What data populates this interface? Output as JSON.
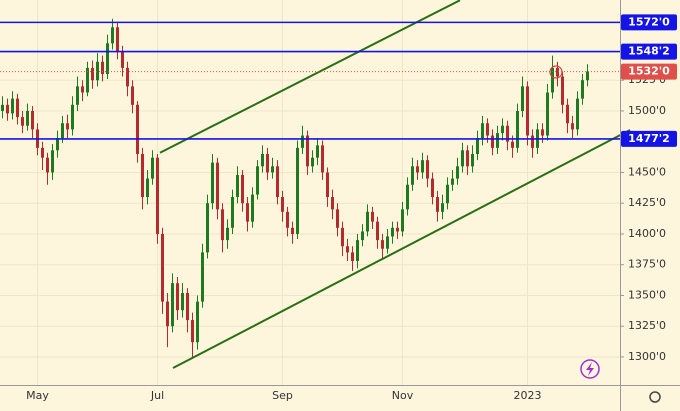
{
  "chart_data": {
    "type": "candlestick",
    "categories": [
      null,
      null,
      null,
      null,
      null,
      null,
      null,
      "May",
      null,
      null,
      null,
      null,
      null,
      null,
      null,
      null,
      null,
      null,
      null,
      null,
      null,
      null,
      null,
      null,
      null,
      null,
      null,
      null,
      null,
      null,
      null,
      "Jul",
      null,
      null,
      null,
      null,
      null,
      null,
      null,
      null,
      null,
      null,
      null,
      null,
      null,
      null,
      null,
      null,
      null,
      null,
      null,
      null,
      null,
      null,
      null,
      null,
      "Sep",
      null,
      null,
      null,
      null,
      null,
      null,
      null,
      null,
      null,
      null,
      null,
      null,
      null,
      null,
      null,
      null,
      null,
      null,
      null,
      null,
      null,
      null,
      null,
      "Nov",
      null,
      null,
      null,
      null,
      null,
      null,
      null,
      null,
      null,
      null,
      null,
      null,
      null,
      null,
      null,
      null,
      null,
      null,
      null,
      null,
      null,
      null,
      null,
      null,
      "2023",
      null,
      null,
      null,
      null,
      null,
      null,
      null,
      null,
      null,
      null,
      null,
      null
    ],
    "open": [
      1500,
      1505,
      1498,
      1510,
      1495,
      1488,
      1500,
      1485,
      1470,
      1462,
      1450,
      1468,
      1478,
      1490,
      1485,
      1505,
      1520,
      1515,
      1535,
      1525,
      1540,
      1530,
      1555,
      1568,
      1548,
      1535,
      1520,
      1505,
      1465,
      1430,
      1445,
      1462,
      1400,
      1345,
      1325,
      1360,
      1338,
      1352,
      1330,
      1312,
      1345,
      1385,
      1425,
      1458,
      1420,
      1395,
      1405,
      1430,
      1448,
      1425,
      1410,
      1432,
      1455,
      1465,
      1450,
      1455,
      1430,
      1418,
      1405,
      1400,
      1470,
      1480,
      1455,
      1462,
      1472,
      1450,
      1430,
      1420,
      1405,
      1390,
      1385,
      1378,
      1395,
      1402,
      1418,
      1410,
      1395,
      1388,
      1398,
      1405,
      1402,
      1420,
      1440,
      1455,
      1450,
      1460,
      1445,
      1430,
      1418,
      1425,
      1440,
      1445,
      1455,
      1468,
      1455,
      1465,
      1478,
      1490,
      1480,
      1470,
      1482,
      1488,
      1475,
      1470,
      1500,
      1520,
      1480,
      1470,
      1485,
      1480,
      1515,
      1535,
      1528,
      1505,
      1490,
      1485,
      1510,
      1525
    ],
    "high": [
      1512,
      1510,
      1516,
      1514,
      1500,
      1506,
      1504,
      1490,
      1475,
      1466,
      1473,
      1484,
      1496,
      1497,
      1512,
      1528,
      1525,
      1540,
      1541,
      1547,
      1545,
      1562,
      1575,
      1572,
      1553,
      1540,
      1525,
      1508,
      1470,
      1452,
      1468,
      1465,
      1405,
      1352,
      1368,
      1365,
      1360,
      1356,
      1336,
      1350,
      1392,
      1432,
      1465,
      1462,
      1425,
      1412,
      1436,
      1455,
      1452,
      1430,
      1438,
      1460,
      1472,
      1470,
      1462,
      1460,
      1435,
      1422,
      1410,
      1476,
      1488,
      1484,
      1468,
      1478,
      1476,
      1454,
      1436,
      1425,
      1410,
      1396,
      1390,
      1400,
      1408,
      1424,
      1422,
      1414,
      1400,
      1404,
      1410,
      1410,
      1426,
      1446,
      1462,
      1460,
      1466,
      1464,
      1450,
      1435,
      1432,
      1446,
      1452,
      1462,
      1474,
      1472,
      1472,
      1484,
      1496,
      1494,
      1485,
      1488,
      1494,
      1492,
      1480,
      1506,
      1528,
      1524,
      1485,
      1490,
      1490,
      1522,
      1545,
      1540,
      1532,
      1510,
      1496,
      1516,
      1530,
      1538
    ],
    "low": [
      1494,
      1492,
      1493,
      1489,
      1482,
      1484,
      1478,
      1464,
      1452,
      1440,
      1444,
      1462,
      1474,
      1478,
      1480,
      1500,
      1508,
      1512,
      1518,
      1520,
      1524,
      1526,
      1550,
      1542,
      1528,
      1512,
      1498,
      1458,
      1420,
      1424,
      1440,
      1392,
      1335,
      1308,
      1320,
      1330,
      1332,
      1320,
      1300,
      1306,
      1340,
      1380,
      1420,
      1412,
      1385,
      1388,
      1400,
      1425,
      1418,
      1402,
      1405,
      1428,
      1450,
      1444,
      1445,
      1424,
      1410,
      1398,
      1392,
      1396,
      1465,
      1448,
      1450,
      1456,
      1444,
      1422,
      1412,
      1398,
      1382,
      1378,
      1370,
      1372,
      1390,
      1398,
      1404,
      1388,
      1380,
      1384,
      1392,
      1396,
      1398,
      1415,
      1435,
      1444,
      1445,
      1438,
      1424,
      1410,
      1412,
      1420,
      1435,
      1440,
      1450,
      1448,
      1450,
      1460,
      1472,
      1474,
      1464,
      1465,
      1476,
      1468,
      1462,
      1466,
      1495,
      1472,
      1462,
      1465,
      1474,
      1476,
      1510,
      1520,
      1498,
      1482,
      1478,
      1480,
      1505,
      1520
    ],
    "close": [
      1505,
      1498,
      1510,
      1495,
      1488,
      1500,
      1485,
      1470,
      1462,
      1450,
      1468,
      1478,
      1490,
      1485,
      1505,
      1520,
      1515,
      1535,
      1525,
      1540,
      1530,
      1555,
      1568,
      1548,
      1535,
      1520,
      1505,
      1465,
      1430,
      1445,
      1462,
      1400,
      1345,
      1325,
      1360,
      1338,
      1352,
      1330,
      1312,
      1345,
      1385,
      1425,
      1458,
      1420,
      1395,
      1405,
      1430,
      1448,
      1425,
      1410,
      1432,
      1455,
      1465,
      1450,
      1455,
      1430,
      1418,
      1405,
      1400,
      1470,
      1480,
      1455,
      1462,
      1472,
      1450,
      1430,
      1420,
      1405,
      1390,
      1385,
      1378,
      1395,
      1402,
      1418,
      1410,
      1395,
      1388,
      1398,
      1405,
      1402,
      1420,
      1440,
      1455,
      1450,
      1460,
      1445,
      1430,
      1418,
      1425,
      1440,
      1445,
      1455,
      1468,
      1455,
      1465,
      1478,
      1490,
      1480,
      1470,
      1482,
      1488,
      1475,
      1470,
      1500,
      1520,
      1480,
      1470,
      1485,
      1480,
      1515,
      1535,
      1528,
      1505,
      1490,
      1485,
      1510,
      1525,
      1532
    ],
    "up_color": "#1f7a1f",
    "down_color": "#b52a2a",
    "ylim": [
      1277.2,
      1590.2
    ],
    "yticks": [
      {
        "value": 1300,
        "label": "1300'0"
      },
      {
        "value": 1325,
        "label": "1325'0"
      },
      {
        "value": 1350,
        "label": "1350'0"
      },
      {
        "value": 1375,
        "label": "1375'0"
      },
      {
        "value": 1400,
        "label": "1400'0"
      },
      {
        "value": 1425,
        "label": "1425'0"
      },
      {
        "value": 1450,
        "label": "1450'0"
      },
      {
        "value": 1500,
        "label": "1500'0"
      },
      {
        "value": 1525,
        "label": "1525'0"
      }
    ],
    "grid": true,
    "levels": [
      {
        "value": 1572,
        "label": "1572'0",
        "color": "#1414e6"
      },
      {
        "value": 1548.25,
        "label": "1548'2",
        "color": "#1414e6"
      },
      {
        "value": 1477.25,
        "label": "1477'2",
        "color": "#1414e6"
      },
      {
        "value": 1532,
        "label": "1532'0",
        "color": "#e0504a",
        "style": "dotted"
      }
    ],
    "trendlines": [
      {
        "color": "#2a6e12",
        "points": [
          [
            31.5,
            1466
          ],
          [
            91.5,
            1590
          ]
        ]
      },
      {
        "color": "#2a6e12",
        "points": [
          [
            34.1,
            1291
          ],
          [
            125.5,
            1484.5
          ]
        ]
      }
    ]
  }
}
